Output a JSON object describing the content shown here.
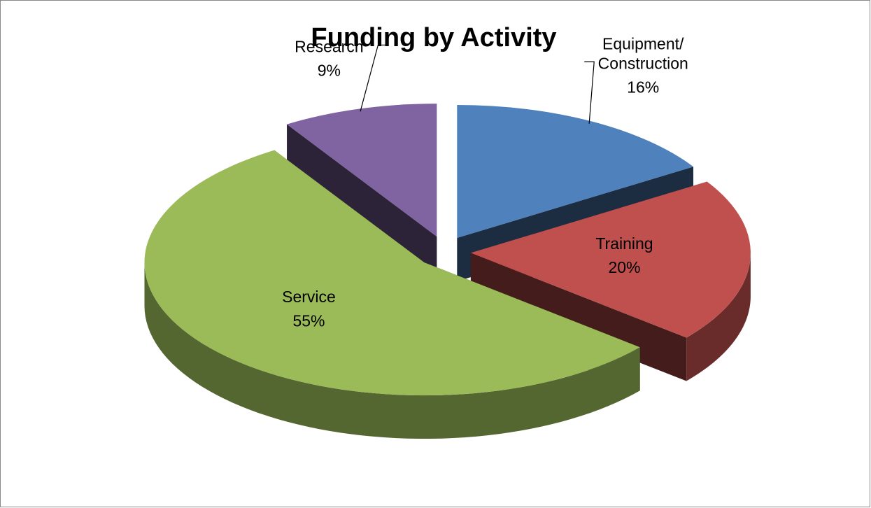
{
  "chart_data": {
    "type": "pie",
    "title": "Funding by Activity",
    "categories": [
      "Equipment/\nConstruction",
      "Training",
      "Service",
      "Research"
    ],
    "values": [
      16,
      20,
      55,
      9
    ],
    "value_labels": [
      "16%",
      "20%",
      "55%",
      "9%"
    ],
    "colors": [
      "#4f81bd",
      "#c0504d",
      "#9bbb59",
      "#8064a2"
    ]
  }
}
